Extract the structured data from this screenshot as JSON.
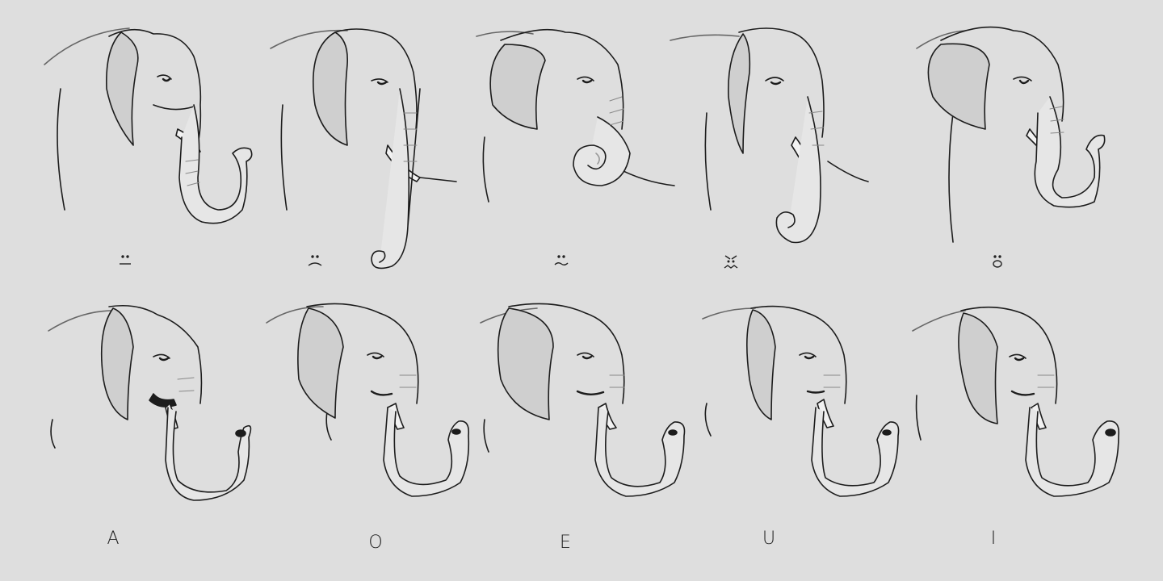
{
  "colors": {
    "background": "#dedede",
    "ink": "#1c1c1c",
    "shade": "#b9b9b9",
    "light_shade": "#cfcfcf"
  },
  "rows": [
    {
      "kind": "expressions",
      "cells": [
        {
          "expression": "neutral",
          "trunk": "hook-out",
          "caption_icon": "neutral-face-icon"
        },
        {
          "expression": "sad",
          "trunk": "hanging-curl",
          "caption_icon": "sad-face-icon"
        },
        {
          "expression": "happy",
          "trunk": "coiled",
          "caption_icon": "happy-face-icon"
        },
        {
          "expression": "angry",
          "trunk": "curl-in",
          "caption_icon": "angry-face-icon"
        },
        {
          "expression": "surprised",
          "trunk": "hook-out",
          "caption_icon": "surprised-face-icon"
        }
      ]
    },
    {
      "kind": "phonemes",
      "cells": [
        {
          "expression": "talking",
          "trunk": "hook-out",
          "label": "A"
        },
        {
          "expression": "talking",
          "trunk": "hook-out",
          "label": "O"
        },
        {
          "expression": "talking",
          "trunk": "hook-out",
          "label": "E"
        },
        {
          "expression": "talking",
          "trunk": "hook-out",
          "label": "U"
        },
        {
          "expression": "talking",
          "trunk": "hook-out",
          "label": "I"
        }
      ]
    }
  ]
}
